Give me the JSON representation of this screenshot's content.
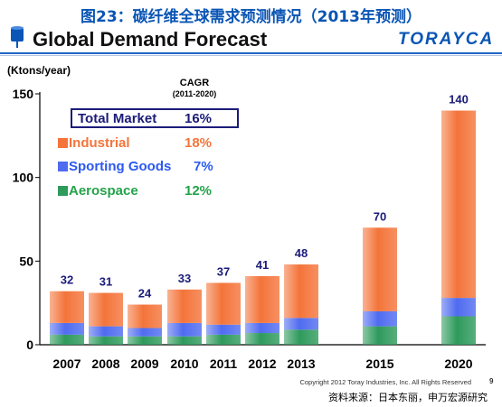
{
  "header": {
    "cn_title": "图23：碳纤维全球需求预测情况（2013年预测）",
    "en_title": "Global Demand Forecast",
    "brand": "TORAYCA"
  },
  "chart_data": {
    "type": "bar",
    "stacked": true,
    "title": "Global Demand Forecast",
    "ylabel": "(Ktons/year)",
    "ylim": [
      0,
      150
    ],
    "yticks": [
      0,
      50,
      100,
      150
    ],
    "categories": [
      "2007",
      "2008",
      "2009",
      "2010",
      "2011",
      "2012",
      "2013",
      "2015",
      "2020"
    ],
    "totals": [
      32,
      31,
      24,
      33,
      37,
      41,
      48,
      70,
      140
    ],
    "series": [
      {
        "name": "Aerospace",
        "color": "#2e9a5c",
        "values": [
          6,
          5,
          5,
          5,
          6,
          7,
          9,
          11,
          17
        ]
      },
      {
        "name": "Sporting Goods",
        "color": "#4f6bf0",
        "values": [
          7,
          6,
          5,
          8,
          6,
          6,
          7,
          9,
          11
        ]
      },
      {
        "name": "Industrial",
        "color": "#f4743a",
        "values": [
          19,
          20,
          14,
          20,
          25,
          28,
          32,
          50,
          112
        ]
      }
    ],
    "legend": {
      "cagr_title": "CAGR",
      "cagr_period": "(2011-2020)",
      "items": [
        {
          "label": "Total Market",
          "cagr": "16%",
          "color": "#1b1b7a"
        },
        {
          "label": "Industrial",
          "cagr": "18%",
          "color": "#f4743a"
        },
        {
          "label": "Sporting Goods",
          "cagr": "7%",
          "color": "#2b59f2"
        },
        {
          "label": "Aerospace",
          "cagr": "12%",
          "color": "#23a34a"
        }
      ]
    }
  },
  "footer": {
    "copyright": "Copyright 2012 Toray Industries, Inc. All Rights Reserved",
    "page": "9",
    "source": "资料来源：日本东丽，申万宏源研究"
  }
}
